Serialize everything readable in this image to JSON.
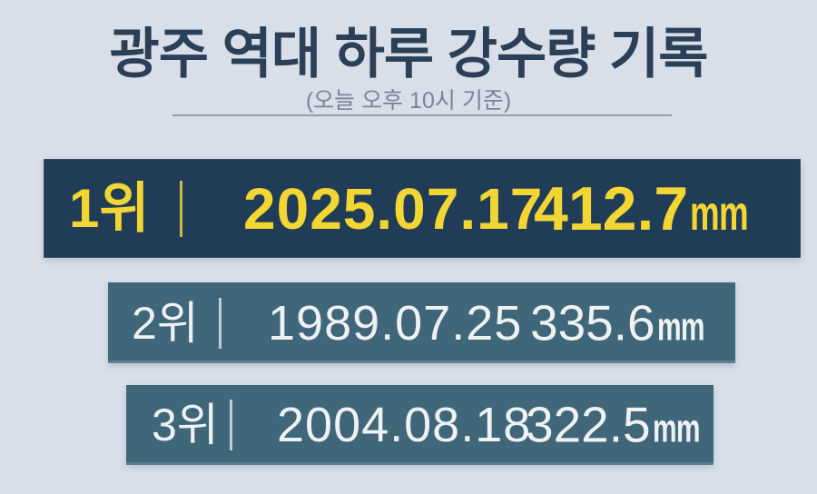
{
  "header": {
    "title": "광주 역대 하루 강수량 기록",
    "subtitle": "(오늘 오후 10시 기준)"
  },
  "records": [
    {
      "rank": "1위",
      "date": "2025.07.17",
      "amount": "412.7",
      "unit": "mm",
      "highlighted": true
    },
    {
      "rank": "2위",
      "date": "1989.07.25",
      "amount": "335.6",
      "unit": "mm",
      "highlighted": false
    },
    {
      "rank": "3위",
      "date": "2004.08.18",
      "amount": "322.5",
      "unit": "mm",
      "highlighted": false
    }
  ],
  "colors": {
    "background": "#d9dfe9",
    "highlight_bar": "#203c57",
    "bar": "#40667a",
    "highlight_text": "#f2d633",
    "bar_text": "#eef2f3",
    "title_text": "#2b4056",
    "subtitle_text": "#79839a",
    "rule": "#929cab"
  },
  "chart_data": {
    "type": "bar",
    "orientation": "horizontal",
    "title": "광주 역대 하루 강수량 기록",
    "subtitle": "(오늘 오후 10시 기준)",
    "ranks": [
      "1위",
      "2위",
      "3위"
    ],
    "categories": [
      "2025.07.17",
      "1989.07.25",
      "2004.08.18"
    ],
    "values": [
      412.7,
      335.6,
      322.5
    ],
    "unit": "mm",
    "legend": "none",
    "grid": false
  }
}
